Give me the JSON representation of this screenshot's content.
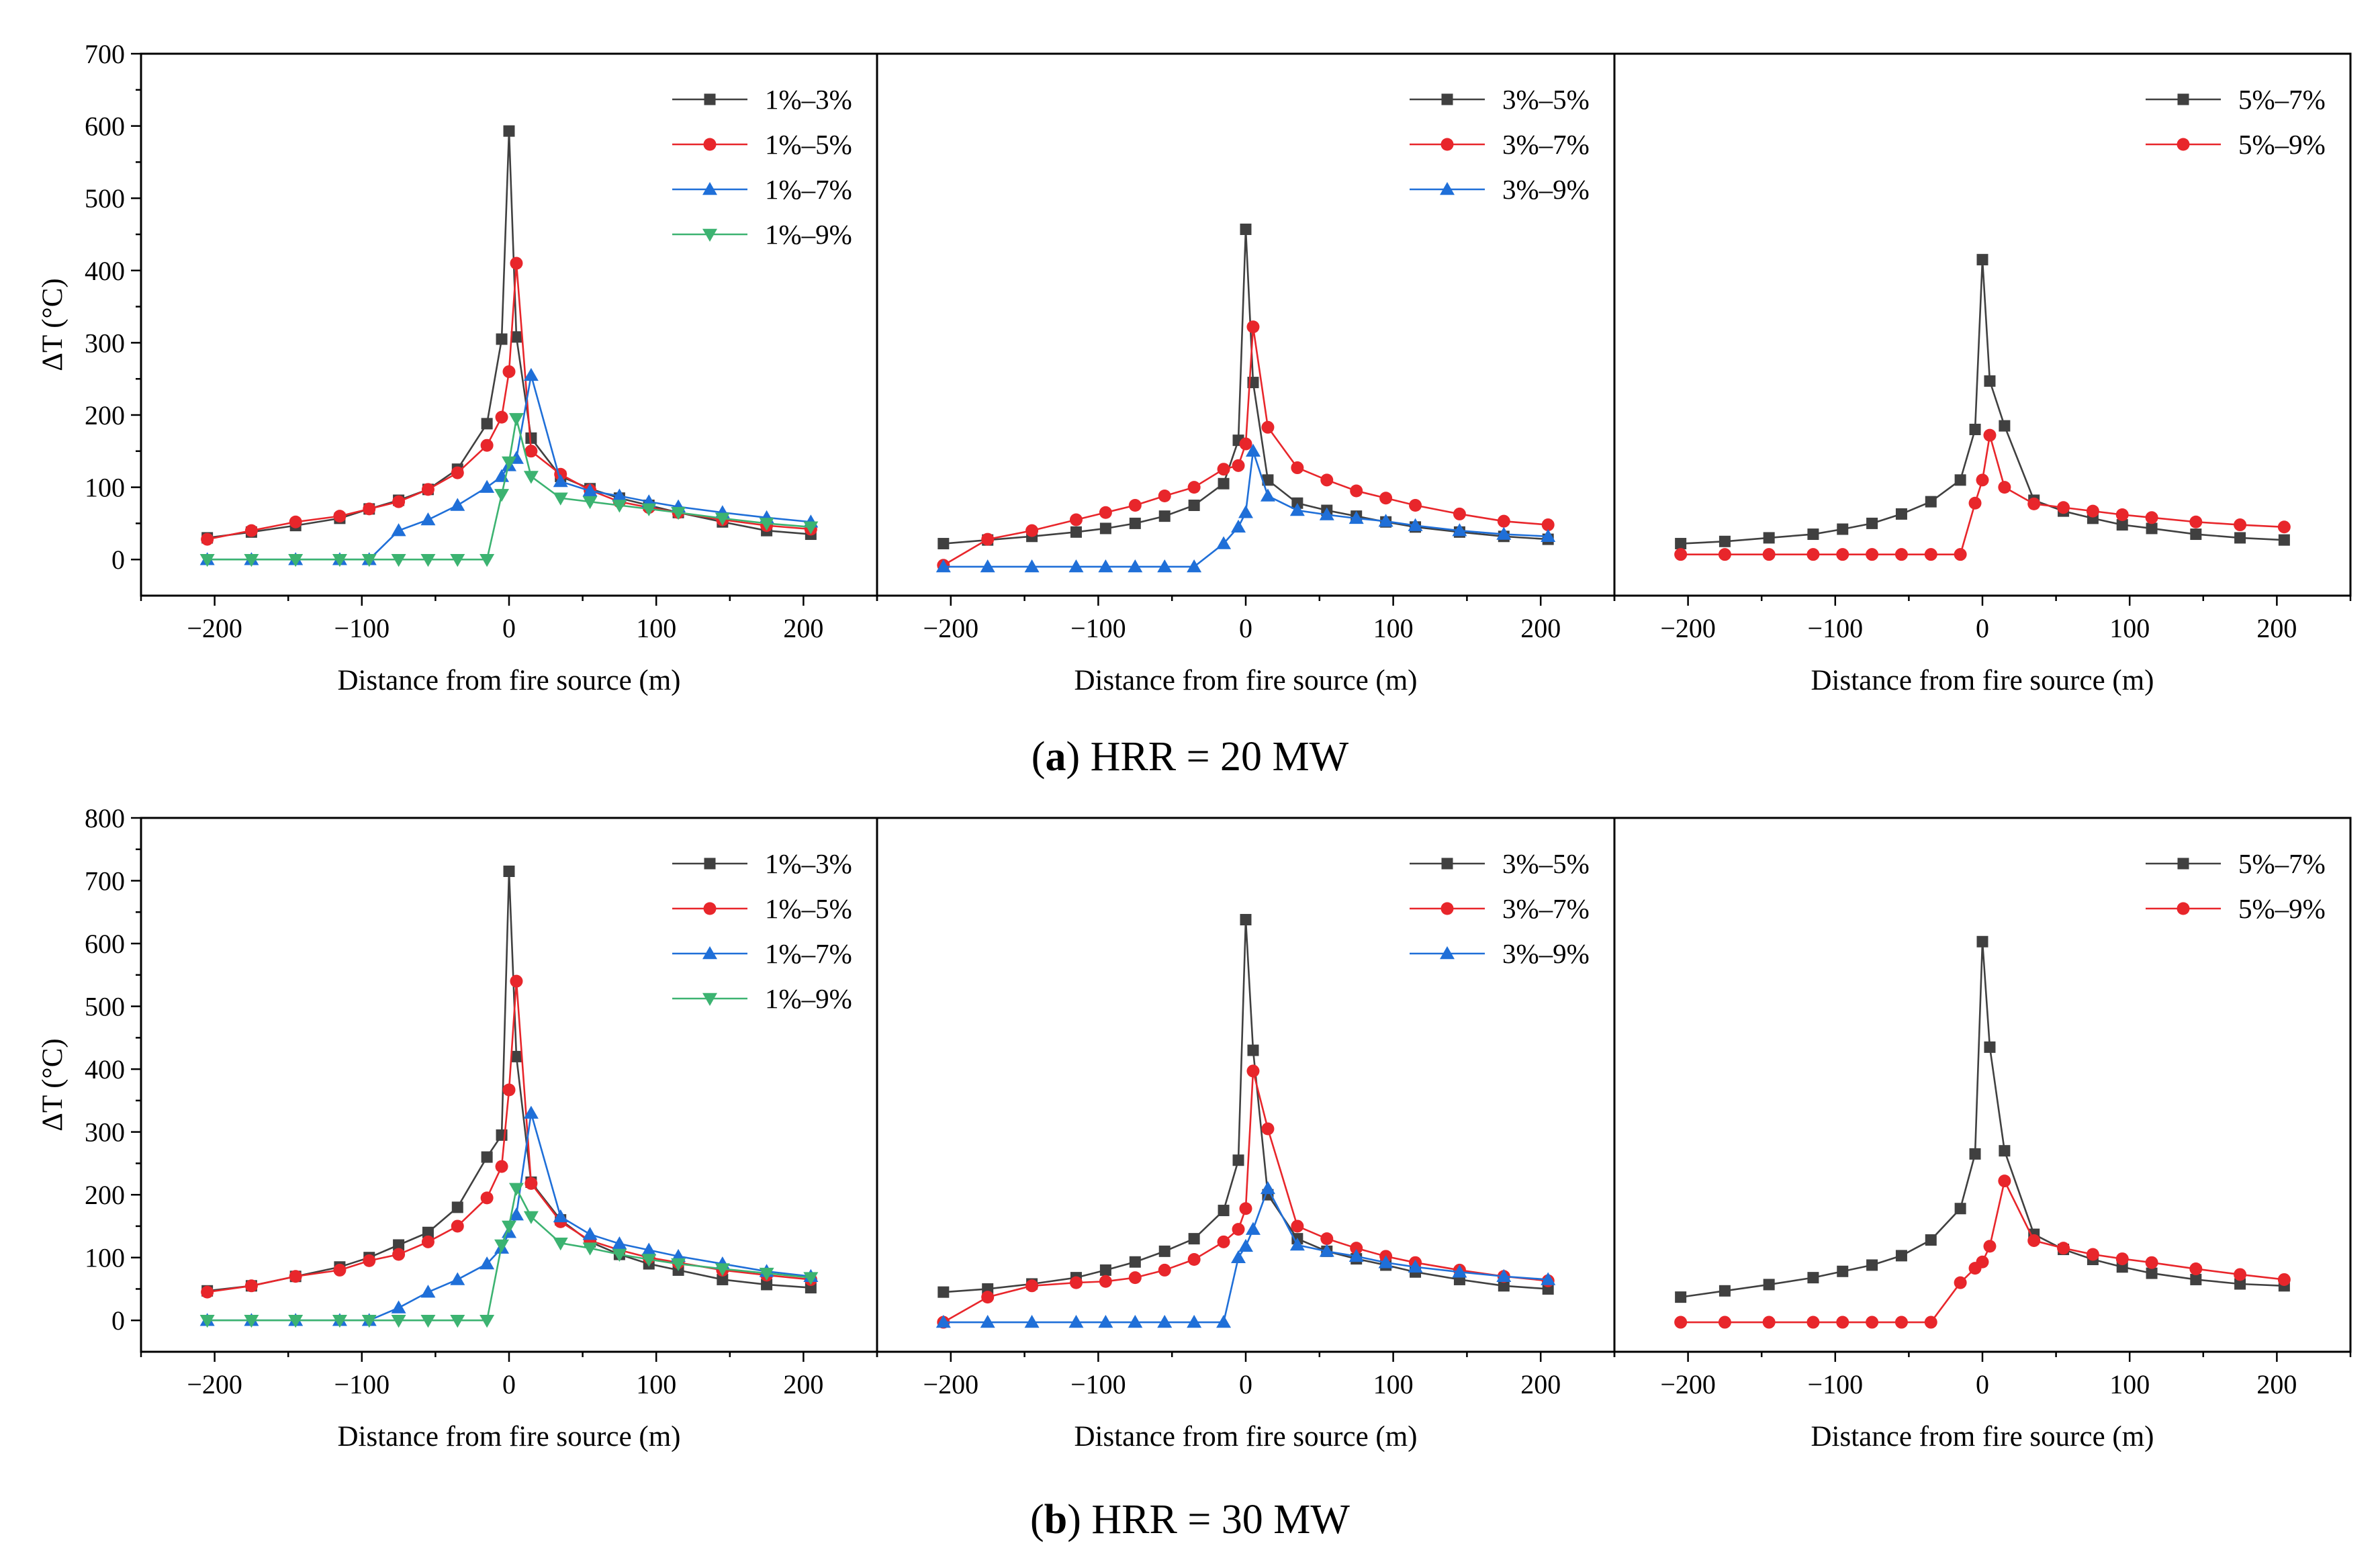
{
  "colors": {
    "black": "#404040",
    "red": "#e8262b",
    "blue": "#1f6fd8",
    "green": "#3cb371"
  },
  "figure": {
    "captions": [
      {
        "letter": "a",
        "text": "HRR = 20 MW"
      },
      {
        "letter": "b",
        "text": "HRR = 30 MW"
      }
    ]
  },
  "chart_data": [
    {
      "type": "line",
      "row": 0,
      "xlabel": "Distance from fire source (m)",
      "ylabel": "ΔT (°C)",
      "xlim": [
        -250,
        250
      ],
      "ylim": [
        -50,
        700
      ],
      "xticks": [
        -200,
        -100,
        0,
        100,
        200
      ],
      "yticks": [
        0,
        100,
        200,
        300,
        400,
        500,
        600,
        700
      ],
      "legend_position": "top-right",
      "series": [
        {
          "name": "1%–3%",
          "color": "black",
          "marker": "square",
          "x": [
            -205,
            -175,
            -145,
            -115,
            -95,
            -75,
            -55,
            -35,
            -15,
            -5,
            0,
            5,
            15,
            35,
            55,
            75,
            95,
            115,
            145,
            175,
            205
          ],
          "y": [
            30,
            38,
            47,
            57,
            70,
            82,
            97,
            125,
            188,
            305,
            593,
            308,
            168,
            115,
            98,
            85,
            75,
            65,
            52,
            40,
            35
          ]
        },
        {
          "name": "1%–5%",
          "color": "red",
          "marker": "circle",
          "x": [
            -205,
            -175,
            -145,
            -115,
            -95,
            -75,
            -55,
            -35,
            -15,
            -5,
            0,
            5,
            15,
            35,
            55,
            75,
            95,
            115,
            145,
            175,
            205
          ],
          "y": [
            28,
            40,
            52,
            60,
            70,
            80,
            97,
            120,
            158,
            197,
            260,
            410,
            150,
            118,
            96,
            80,
            72,
            65,
            55,
            47,
            42
          ]
        },
        {
          "name": "1%–7%",
          "color": "blue",
          "marker": "triangle-up",
          "x": [
            -205,
            -175,
            -145,
            -115,
            -95,
            -75,
            -55,
            -35,
            -15,
            -5,
            0,
            5,
            15,
            35,
            55,
            75,
            95,
            115,
            145,
            175,
            205
          ],
          "y": [
            0,
            0,
            0,
            0,
            0,
            40,
            55,
            75,
            100,
            115,
            130,
            140,
            255,
            108,
            95,
            88,
            80,
            73,
            65,
            58,
            52
          ]
        },
        {
          "name": "1%–9%",
          "color": "green",
          "marker": "triangle-down",
          "x": [
            -205,
            -175,
            -145,
            -115,
            -95,
            -75,
            -55,
            -35,
            -15,
            -5,
            0,
            5,
            15,
            35,
            55,
            75,
            95,
            115,
            145,
            175,
            205
          ],
          "y": [
            0,
            0,
            0,
            0,
            0,
            0,
            0,
            0,
            0,
            90,
            135,
            195,
            115,
            85,
            80,
            75,
            70,
            65,
            57,
            50,
            45
          ]
        }
      ]
    },
    {
      "type": "line",
      "row": 0,
      "xlabel": "Distance from fire source (m)",
      "ylabel": "",
      "xlim": [
        -250,
        250
      ],
      "ylim": [
        -50,
        700
      ],
      "xticks": [
        -200,
        -100,
        0,
        100,
        200
      ],
      "yticks": [],
      "legend_position": "top-right",
      "series": [
        {
          "name": "3%–5%",
          "color": "black",
          "marker": "square",
          "x": [
            -205,
            -175,
            -145,
            -115,
            -95,
            -75,
            -55,
            -35,
            -15,
            -5,
            0,
            5,
            15,
            35,
            55,
            75,
            95,
            115,
            145,
            175,
            205
          ],
          "y": [
            22,
            27,
            32,
            38,
            43,
            50,
            60,
            75,
            105,
            165,
            457,
            245,
            110,
            78,
            68,
            60,
            52,
            45,
            38,
            32,
            28
          ]
        },
        {
          "name": "3%–7%",
          "color": "red",
          "marker": "circle",
          "x": [
            -205,
            -175,
            -145,
            -115,
            -95,
            -75,
            -55,
            -35,
            -15,
            -5,
            0,
            5,
            15,
            35,
            55,
            75,
            95,
            115,
            145,
            175,
            205
          ],
          "y": [
            -8,
            28,
            40,
            55,
            65,
            75,
            88,
            100,
            125,
            130,
            160,
            322,
            183,
            127,
            110,
            95,
            85,
            75,
            63,
            53,
            48
          ]
        },
        {
          "name": "3%–9%",
          "color": "blue",
          "marker": "triangle-up",
          "x": [
            -205,
            -175,
            -145,
            -115,
            -95,
            -75,
            -55,
            -35,
            -15,
            -5,
            0,
            5,
            15,
            35,
            55,
            75,
            95,
            115,
            145,
            175,
            205
          ],
          "y": [
            -10,
            -10,
            -10,
            -10,
            -10,
            -10,
            -10,
            -10,
            22,
            45,
            65,
            150,
            88,
            68,
            62,
            57,
            53,
            47,
            40,
            35,
            32
          ]
        }
      ]
    },
    {
      "type": "line",
      "row": 0,
      "xlabel": "Distance from fire source (m)",
      "ylabel": "",
      "xlim": [
        -250,
        250
      ],
      "ylim": [
        -50,
        700
      ],
      "xticks": [
        -200,
        -100,
        0,
        100,
        200
      ],
      "yticks": [],
      "legend_position": "top-right",
      "series": [
        {
          "name": "5%–7%",
          "color": "black",
          "marker": "square",
          "x": [
            -205,
            -175,
            -145,
            -115,
            -95,
            -75,
            -55,
            -35,
            -15,
            -5,
            0,
            5,
            15,
            35,
            55,
            75,
            95,
            115,
            145,
            175,
            205
          ],
          "y": [
            22,
            25,
            30,
            35,
            42,
            50,
            63,
            80,
            110,
            180,
            415,
            247,
            185,
            82,
            67,
            57,
            48,
            43,
            35,
            30,
            27
          ]
        },
        {
          "name": "5%–9%",
          "color": "red",
          "marker": "circle",
          "x": [
            -205,
            -175,
            -145,
            -115,
            -95,
            -75,
            -55,
            -35,
            -15,
            -5,
            0,
            5,
            15,
            35,
            55,
            75,
            95,
            115,
            145,
            175,
            205
          ],
          "y": [
            7,
            7,
            7,
            7,
            7,
            7,
            7,
            7,
            7,
            78,
            110,
            172,
            100,
            77,
            72,
            67,
            62,
            58,
            52,
            48,
            45
          ]
        }
      ]
    },
    {
      "type": "line",
      "row": 1,
      "xlabel": "Distance from fire source (m)",
      "ylabel": "ΔT (°C)",
      "xlim": [
        -250,
        250
      ],
      "ylim": [
        -50,
        800
      ],
      "xticks": [
        -200,
        -100,
        0,
        100,
        200
      ],
      "yticks": [
        0,
        100,
        200,
        300,
        400,
        500,
        600,
        700,
        800
      ],
      "legend_position": "top-right",
      "series": [
        {
          "name": "1%–3%",
          "color": "black",
          "marker": "square",
          "x": [
            -205,
            -175,
            -145,
            -115,
            -95,
            -75,
            -55,
            -35,
            -15,
            -5,
            0,
            5,
            15,
            35,
            55,
            75,
            95,
            115,
            145,
            175,
            205
          ],
          "y": [
            47,
            55,
            70,
            85,
            100,
            120,
            140,
            180,
            260,
            295,
            715,
            420,
            220,
            160,
            125,
            105,
            90,
            80,
            65,
            57,
            52
          ]
        },
        {
          "name": "1%–5%",
          "color": "red",
          "marker": "circle",
          "x": [
            -205,
            -175,
            -145,
            -115,
            -95,
            -75,
            -55,
            -35,
            -15,
            -5,
            0,
            5,
            15,
            35,
            55,
            75,
            95,
            115,
            145,
            175,
            205
          ],
          "y": [
            45,
            55,
            70,
            80,
            95,
            105,
            125,
            150,
            195,
            245,
            367,
            540,
            218,
            157,
            127,
            112,
            100,
            92,
            80,
            72,
            65
          ]
        },
        {
          "name": "1%–7%",
          "color": "blue",
          "marker": "triangle-up",
          "x": [
            -205,
            -175,
            -145,
            -115,
            -95,
            -75,
            -55,
            -35,
            -15,
            -5,
            0,
            5,
            15,
            35,
            55,
            75,
            95,
            115,
            145,
            175,
            205
          ],
          "y": [
            0,
            0,
            0,
            0,
            0,
            20,
            45,
            65,
            90,
            115,
            140,
            168,
            330,
            165,
            137,
            122,
            112,
            102,
            90,
            78,
            70
          ]
        },
        {
          "name": "1%–9%",
          "color": "green",
          "marker": "triangle-down",
          "x": [
            -205,
            -175,
            -145,
            -115,
            -95,
            -75,
            -55,
            -35,
            -15,
            -5,
            0,
            5,
            15,
            35,
            55,
            75,
            95,
            115,
            145,
            175,
            205
          ],
          "y": [
            0,
            0,
            0,
            0,
            0,
            0,
            0,
            0,
            0,
            120,
            150,
            210,
            165,
            123,
            115,
            105,
            97,
            90,
            82,
            75,
            68
          ]
        }
      ]
    },
    {
      "type": "line",
      "row": 1,
      "xlabel": "Distance from fire source (m)",
      "ylabel": "",
      "xlim": [
        -250,
        250
      ],
      "ylim": [
        -50,
        800
      ],
      "xticks": [
        -200,
        -100,
        0,
        100,
        200
      ],
      "yticks": [],
      "legend_position": "top-right",
      "series": [
        {
          "name": "3%–5%",
          "color": "black",
          "marker": "square",
          "x": [
            -205,
            -175,
            -145,
            -115,
            -95,
            -75,
            -55,
            -35,
            -15,
            -5,
            0,
            5,
            15,
            35,
            55,
            75,
            95,
            115,
            145,
            175,
            205
          ],
          "y": [
            45,
            50,
            58,
            68,
            80,
            93,
            110,
            130,
            175,
            255,
            638,
            430,
            200,
            130,
            110,
            98,
            88,
            77,
            65,
            55,
            50
          ]
        },
        {
          "name": "3%–7%",
          "color": "red",
          "marker": "circle",
          "x": [
            -205,
            -175,
            -145,
            -115,
            -95,
            -75,
            -55,
            -35,
            -15,
            -5,
            0,
            5,
            15,
            35,
            55,
            75,
            95,
            115,
            145,
            175,
            205
          ],
          "y": [
            -3,
            37,
            55,
            60,
            62,
            68,
            80,
            97,
            125,
            145,
            178,
            397,
            305,
            150,
            130,
            115,
            102,
            92,
            80,
            70,
            63
          ]
        },
        {
          "name": "3%–9%",
          "color": "blue",
          "marker": "triangle-up",
          "x": [
            -205,
            -175,
            -145,
            -115,
            -95,
            -75,
            -55,
            -35,
            -15,
            -5,
            0,
            5,
            15,
            35,
            55,
            75,
            95,
            115,
            145,
            175,
            205
          ],
          "y": [
            -3,
            -3,
            -3,
            -3,
            -3,
            -3,
            -3,
            -3,
            -3,
            100,
            118,
            145,
            210,
            120,
            110,
            102,
            92,
            85,
            77,
            70,
            65
          ]
        }
      ]
    },
    {
      "type": "line",
      "row": 1,
      "xlabel": "Distance from fire source (m)",
      "ylabel": "",
      "xlim": [
        -250,
        250
      ],
      "ylim": [
        -50,
        800
      ],
      "xticks": [
        -200,
        -100,
        0,
        100,
        200
      ],
      "yticks": [],
      "legend_position": "top-right",
      "series": [
        {
          "name": "5%–7%",
          "color": "black",
          "marker": "square",
          "x": [
            -205,
            -175,
            -145,
            -115,
            -95,
            -75,
            -55,
            -35,
            -15,
            -5,
            0,
            5,
            15,
            35,
            55,
            75,
            95,
            115,
            145,
            175,
            205
          ],
          "y": [
            37,
            47,
            57,
            68,
            78,
            88,
            103,
            128,
            178,
            265,
            603,
            435,
            270,
            137,
            113,
            97,
            85,
            75,
            65,
            58,
            55
          ]
        },
        {
          "name": "5%–9%",
          "color": "red",
          "marker": "circle",
          "x": [
            -205,
            -175,
            -145,
            -115,
            -95,
            -75,
            -55,
            -35,
            -15,
            -5,
            0,
            5,
            15,
            35,
            55,
            75,
            95,
            115,
            145,
            175,
            205
          ],
          "y": [
            -3,
            -3,
            -3,
            -3,
            -3,
            -3,
            -3,
            -3,
            60,
            83,
            93,
            118,
            222,
            127,
            115,
            105,
            98,
            92,
            82,
            73,
            65
          ]
        }
      ]
    }
  ]
}
